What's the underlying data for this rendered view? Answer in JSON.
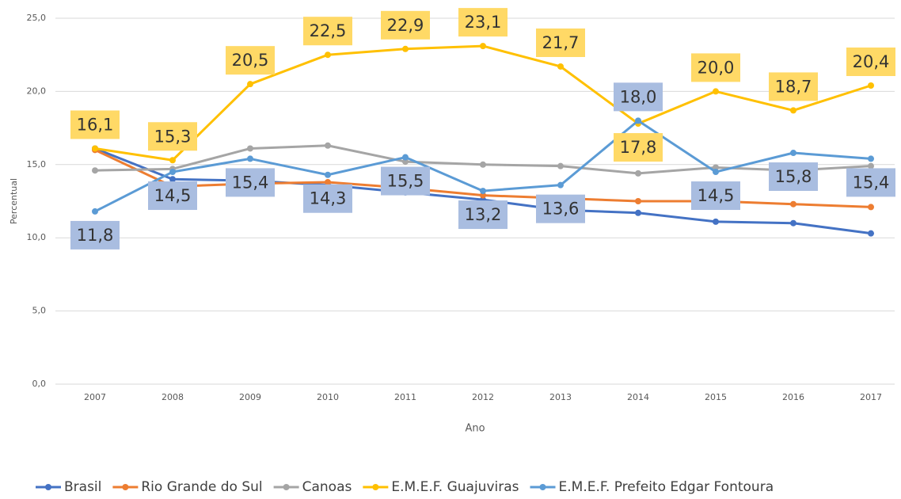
{
  "chart_data": {
    "type": "line",
    "x_label": "Ano",
    "y_label": "Percentual",
    "categories": [
      "2007",
      "2008",
      "2009",
      "2010",
      "2011",
      "2012",
      "2013",
      "2014",
      "2015",
      "2016",
      "2017"
    ],
    "ylim": [
      0,
      25
    ],
    "yticks": [
      {
        "value": 0,
        "label": "0,0"
      },
      {
        "value": 5,
        "label": "5,0"
      },
      {
        "value": 10,
        "label": "10,0"
      },
      {
        "value": 15,
        "label": "15,0"
      },
      {
        "value": 20,
        "label": "20,0"
      },
      {
        "value": 25,
        "label": "25,0"
      }
    ],
    "grid": true,
    "legend": "bottom",
    "series": [
      {
        "name": "Brasil",
        "color": "#4472c4",
        "values": [
          16.1,
          14.0,
          13.9,
          13.6,
          13.1,
          12.6,
          11.9,
          11.7,
          11.1,
          11.0,
          10.3
        ]
      },
      {
        "name": "Rio Grande do Sul",
        "color": "#ed7d31",
        "values": [
          16.0,
          13.5,
          13.7,
          13.8,
          13.4,
          12.9,
          12.7,
          12.5,
          12.5,
          12.3,
          12.1
        ]
      },
      {
        "name": "Canoas",
        "color": "#a5a5a5",
        "values": [
          14.6,
          14.7,
          16.1,
          16.3,
          15.2,
          15.0,
          14.9,
          14.4,
          14.8,
          14.6,
          14.9
        ]
      },
      {
        "name": "E.M.E.F. Guajuviras",
        "color": "#ffc000",
        "label_color": "#ffd966",
        "values": [
          16.1,
          15.3,
          20.5,
          22.5,
          22.9,
          23.1,
          21.7,
          17.8,
          20.0,
          18.7,
          20.4
        ],
        "value_labels": [
          "16,1",
          "15,3",
          "20,5",
          "22,5",
          "22,9",
          "23,1",
          "21,7",
          "17,8",
          "20,0",
          "18,7",
          "20,4"
        ]
      },
      {
        "name": "E.M.E.F. Prefeito Edgar Fontoura",
        "color": "#5b9bd5",
        "label_color": "#a9bde0",
        "values": [
          11.8,
          14.5,
          15.4,
          14.3,
          15.5,
          13.2,
          13.6,
          18.0,
          14.5,
          15.8,
          15.4
        ],
        "value_labels": [
          "11,8",
          "14,5",
          "15,4",
          "14,3",
          "15,5",
          "13,2",
          "13,6",
          "18,0",
          "14,5",
          "15,8",
          "15,4"
        ]
      }
    ]
  }
}
